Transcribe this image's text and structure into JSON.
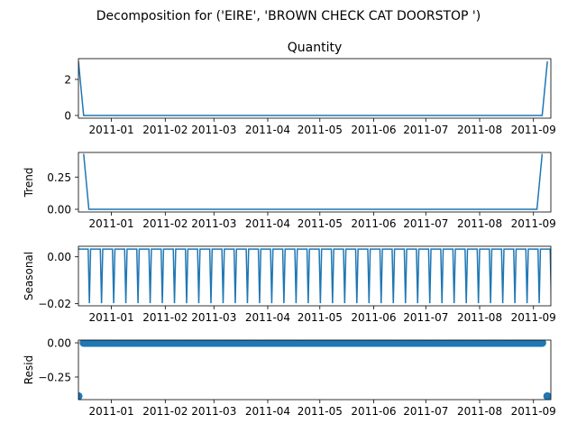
{
  "figure": {
    "suptitle": "Decomposition for ('EIRE', 'BROWN CHECK CAT DOORSTOP ')"
  },
  "colors": {
    "line": "#1f77b4",
    "axes": "#000000",
    "background": "#ffffff"
  },
  "x_ticks": [
    "2011-01",
    "2011-02",
    "2011-03",
    "2011-04",
    "2011-05",
    "2011-06",
    "2011-07",
    "2011-08",
    "2011-09"
  ],
  "chart_data": [
    {
      "type": "line",
      "title": "Quantity",
      "ylabel": "",
      "x_range": [
        "2010-12-13",
        "2011-09-11"
      ],
      "ylim": [
        -0.15,
        3.15
      ],
      "y_ticks": [
        {
          "value": 0,
          "label": "0"
        },
        {
          "value": 2,
          "label": "2"
        }
      ],
      "series": [
        {
          "points": [
            {
              "x": "2010-12-13",
              "y": 3
            },
            {
              "x": "2010-12-16",
              "y": 0
            },
            {
              "x": "2011-09-06",
              "y": 0
            },
            {
              "x": "2011-09-09",
              "y": 3
            }
          ]
        }
      ]
    },
    {
      "type": "line",
      "title": "",
      "ylabel": "Trend",
      "x_range": [
        "2010-12-13",
        "2011-09-11"
      ],
      "ylim": [
        -0.021,
        0.441
      ],
      "y_ticks": [
        {
          "value": 0,
          "label": "0.00"
        },
        {
          "value": 0.25,
          "label": "0.25"
        }
      ],
      "series": [
        {
          "points": [
            {
              "x": "2010-12-16",
              "y": 0.43
            },
            {
              "x": "2010-12-19",
              "y": 0
            },
            {
              "x": "2011-09-03",
              "y": 0
            },
            {
              "x": "2011-09-06",
              "y": 0.43
            }
          ]
        }
      ]
    },
    {
      "type": "line",
      "title": "",
      "ylabel": "Seasonal",
      "x_range": [
        "2010-12-13",
        "2011-09-11"
      ],
      "ylim": [
        -0.0209,
        0.0045
      ],
      "y_ticks": [
        {
          "value": 0,
          "label": "0.00"
        },
        {
          "value": -0.02,
          "label": "−0.02"
        }
      ],
      "pattern": {
        "high": 0.0033,
        "low": -0.0198,
        "period_days": 7,
        "start": "2010-12-13"
      }
    },
    {
      "type": "scatter",
      "title": "",
      "ylabel": "Resid",
      "x_range": [
        "2010-12-13",
        "2011-09-11"
      ],
      "ylim": [
        -0.415,
        0.02
      ],
      "y_ticks": [
        {
          "value": 0,
          "label": "0.00"
        },
        {
          "value": -0.25,
          "label": "−0.25"
        }
      ],
      "baseline": {
        "start": "2010-12-16",
        "end": "2011-09-06",
        "y": 0
      },
      "points": [
        {
          "x": "2010-12-13",
          "y": -0.39
        },
        {
          "x": "2011-09-09",
          "y": -0.39
        }
      ]
    }
  ]
}
